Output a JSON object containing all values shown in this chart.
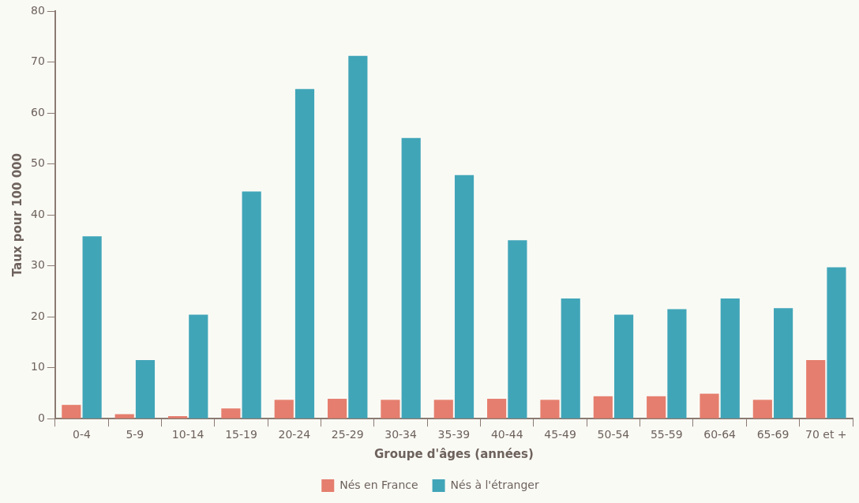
{
  "chart_data": {
    "type": "bar",
    "xlabel": "Groupe d'âges (années)",
    "ylabel": "Taux pour 100 000",
    "categories": [
      "0-4",
      "5-9",
      "10-14",
      "15-19",
      "20-24",
      "25-29",
      "30-34",
      "35-39",
      "40-44",
      "45-49",
      "50-54",
      "55-59",
      "60-64",
      "65-69",
      "70 et +"
    ],
    "series": [
      {
        "name": "Nés en France",
        "color": "#e57e6e",
        "values": [
          2.7,
          0.9,
          0.5,
          2.0,
          3.7,
          3.9,
          3.7,
          3.7,
          3.9,
          3.7,
          4.4,
          4.4,
          4.9,
          3.7,
          11.5
        ]
      },
      {
        "name": "Nés à l'étranger",
        "color": "#41a5b8",
        "values": [
          35.8,
          11.5,
          20.4,
          44.6,
          64.7,
          71.2,
          55.1,
          47.8,
          35.0,
          23.6,
          20.4,
          21.5,
          23.6,
          21.7,
          29.7
        ]
      }
    ],
    "ylim": [
      0,
      80
    ],
    "yticks": [
      0,
      10,
      20,
      30,
      40,
      50,
      60,
      70,
      80
    ],
    "grid": false,
    "legend": "bottom"
  }
}
